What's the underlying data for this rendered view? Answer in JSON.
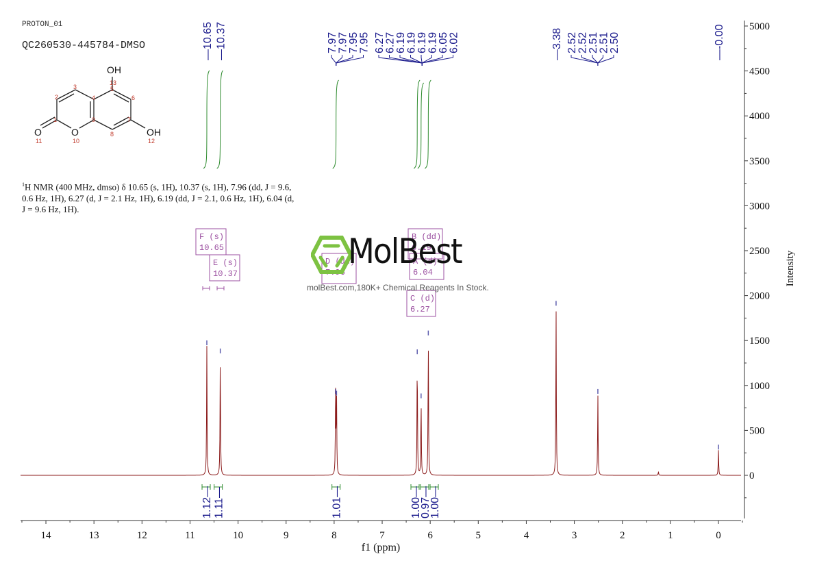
{
  "header": {
    "experiment_label": "PROTON_01",
    "sample_id": "QC260530-445784-DMSO"
  },
  "structure": {
    "atoms": [
      {
        "label": "OH",
        "num": "13"
      },
      {
        "label": "OH",
        "num": "12"
      },
      {
        "label": "O",
        "num": "11"
      },
      {
        "label": "O",
        "num": "10"
      }
    ],
    "ring_numbers": [
      "1",
      "2",
      "3",
      "4",
      "5",
      "6",
      "7",
      "8",
      "9"
    ]
  },
  "summary": {
    "prefix_sup": "1",
    "text": "H NMR (400 MHz, dmso) δ 10.65 (s, 1H), 10.37 (s, 1H), 7.96 (dd, J = 9.6, 0.6 Hz, 1H), 6.27 (d, J = 2.1 Hz, 1H), 6.19 (dd, J = 2.1, 0.6 Hz, 1H), 6.04 (d, J = 9.6 Hz, 1H)."
  },
  "watermark": {
    "brand": "MolBest",
    "tagline": "molBest.com,180K+ Chemical Reagents In Stock.",
    "color_logo": "#7dc242",
    "color_text": "#111111"
  },
  "colors": {
    "spectrum": "#8b1a1a",
    "peak_labels": "#1a1a8c",
    "integrals": "#2e8b2e",
    "multiplet_boxes": "#9b4fa0",
    "axis": "#333333"
  },
  "chart_data": {
    "type": "line",
    "title": "QC260530-445784-DMSO",
    "xlabel": "f1 (ppm)",
    "ylabel": "Intensity",
    "xlim": [
      14.5,
      -0.5
    ],
    "ylim": [
      -500,
      5000
    ],
    "x_axis_reversed": true,
    "x_ticks": [
      "14",
      "13",
      "12",
      "11",
      "10",
      "9",
      "8",
      "7",
      "6",
      "5",
      "4",
      "3",
      "2",
      "1",
      "0"
    ],
    "y_ticks": [
      "5000",
      "4500",
      "4000",
      "3500",
      "3000",
      "2500",
      "2000",
      "1500",
      "1000",
      "500",
      "0"
    ],
    "grid": false,
    "peak_list_labels": [
      {
        "group": 1,
        "values": [
          "10.65"
        ]
      },
      {
        "group": 2,
        "values": [
          "10.37"
        ]
      },
      {
        "group": 3,
        "values": [
          "7.97",
          "7.97",
          "7.95",
          "7.95"
        ]
      },
      {
        "group": 4,
        "values": [
          "6.27",
          "6.27",
          "6.19",
          "6.19",
          "6.19",
          "6.19",
          "6.05",
          "6.02"
        ]
      },
      {
        "group": 5,
        "values": [
          "3.38"
        ]
      },
      {
        "group": 6,
        "values": [
          "2.52",
          "2.52",
          "2.51",
          "2.51",
          "2.50"
        ]
      },
      {
        "group": 7,
        "values": [
          "-0.00"
        ]
      }
    ],
    "peaks": [
      {
        "ppm": 10.65,
        "intensity": 1440
      },
      {
        "ppm": 10.37,
        "intensity": 1350
      },
      {
        "ppm": 7.97,
        "intensity": 900
      },
      {
        "ppm": 7.95,
        "intensity": 880
      },
      {
        "ppm": 6.27,
        "intensity": 1340
      },
      {
        "ppm": 6.19,
        "intensity": 850
      },
      {
        "ppm": 6.04,
        "intensity": 1550
      },
      {
        "ppm": 3.38,
        "intensity": 1880
      },
      {
        "ppm": 2.51,
        "intensity": 900
      },
      {
        "ppm": 1.25,
        "intensity": 40
      },
      {
        "ppm": 0.0,
        "intensity": 280
      }
    ],
    "multiplets": [
      {
        "id": "F",
        "type": "s",
        "shift": "10.65"
      },
      {
        "id": "E",
        "type": "s",
        "shift": "10.37"
      },
      {
        "id": "D",
        "type": "dd",
        "shift": "7.96"
      },
      {
        "id": "B",
        "type": "dd",
        "shift": "6.19"
      },
      {
        "id": "A",
        "type": "d",
        "shift": "6.04"
      },
      {
        "id": "C",
        "type": "d",
        "shift": "6.27"
      }
    ],
    "integrals": [
      {
        "ppm": 10.65,
        "value": "1.12"
      },
      {
        "ppm": 10.37,
        "value": "1.11"
      },
      {
        "ppm": 7.96,
        "value": "1.01"
      },
      {
        "ppm": 6.27,
        "value": "1.00"
      },
      {
        "ppm": 6.19,
        "value": "0.97"
      },
      {
        "ppm": 6.04,
        "value": "1.00"
      }
    ]
  }
}
